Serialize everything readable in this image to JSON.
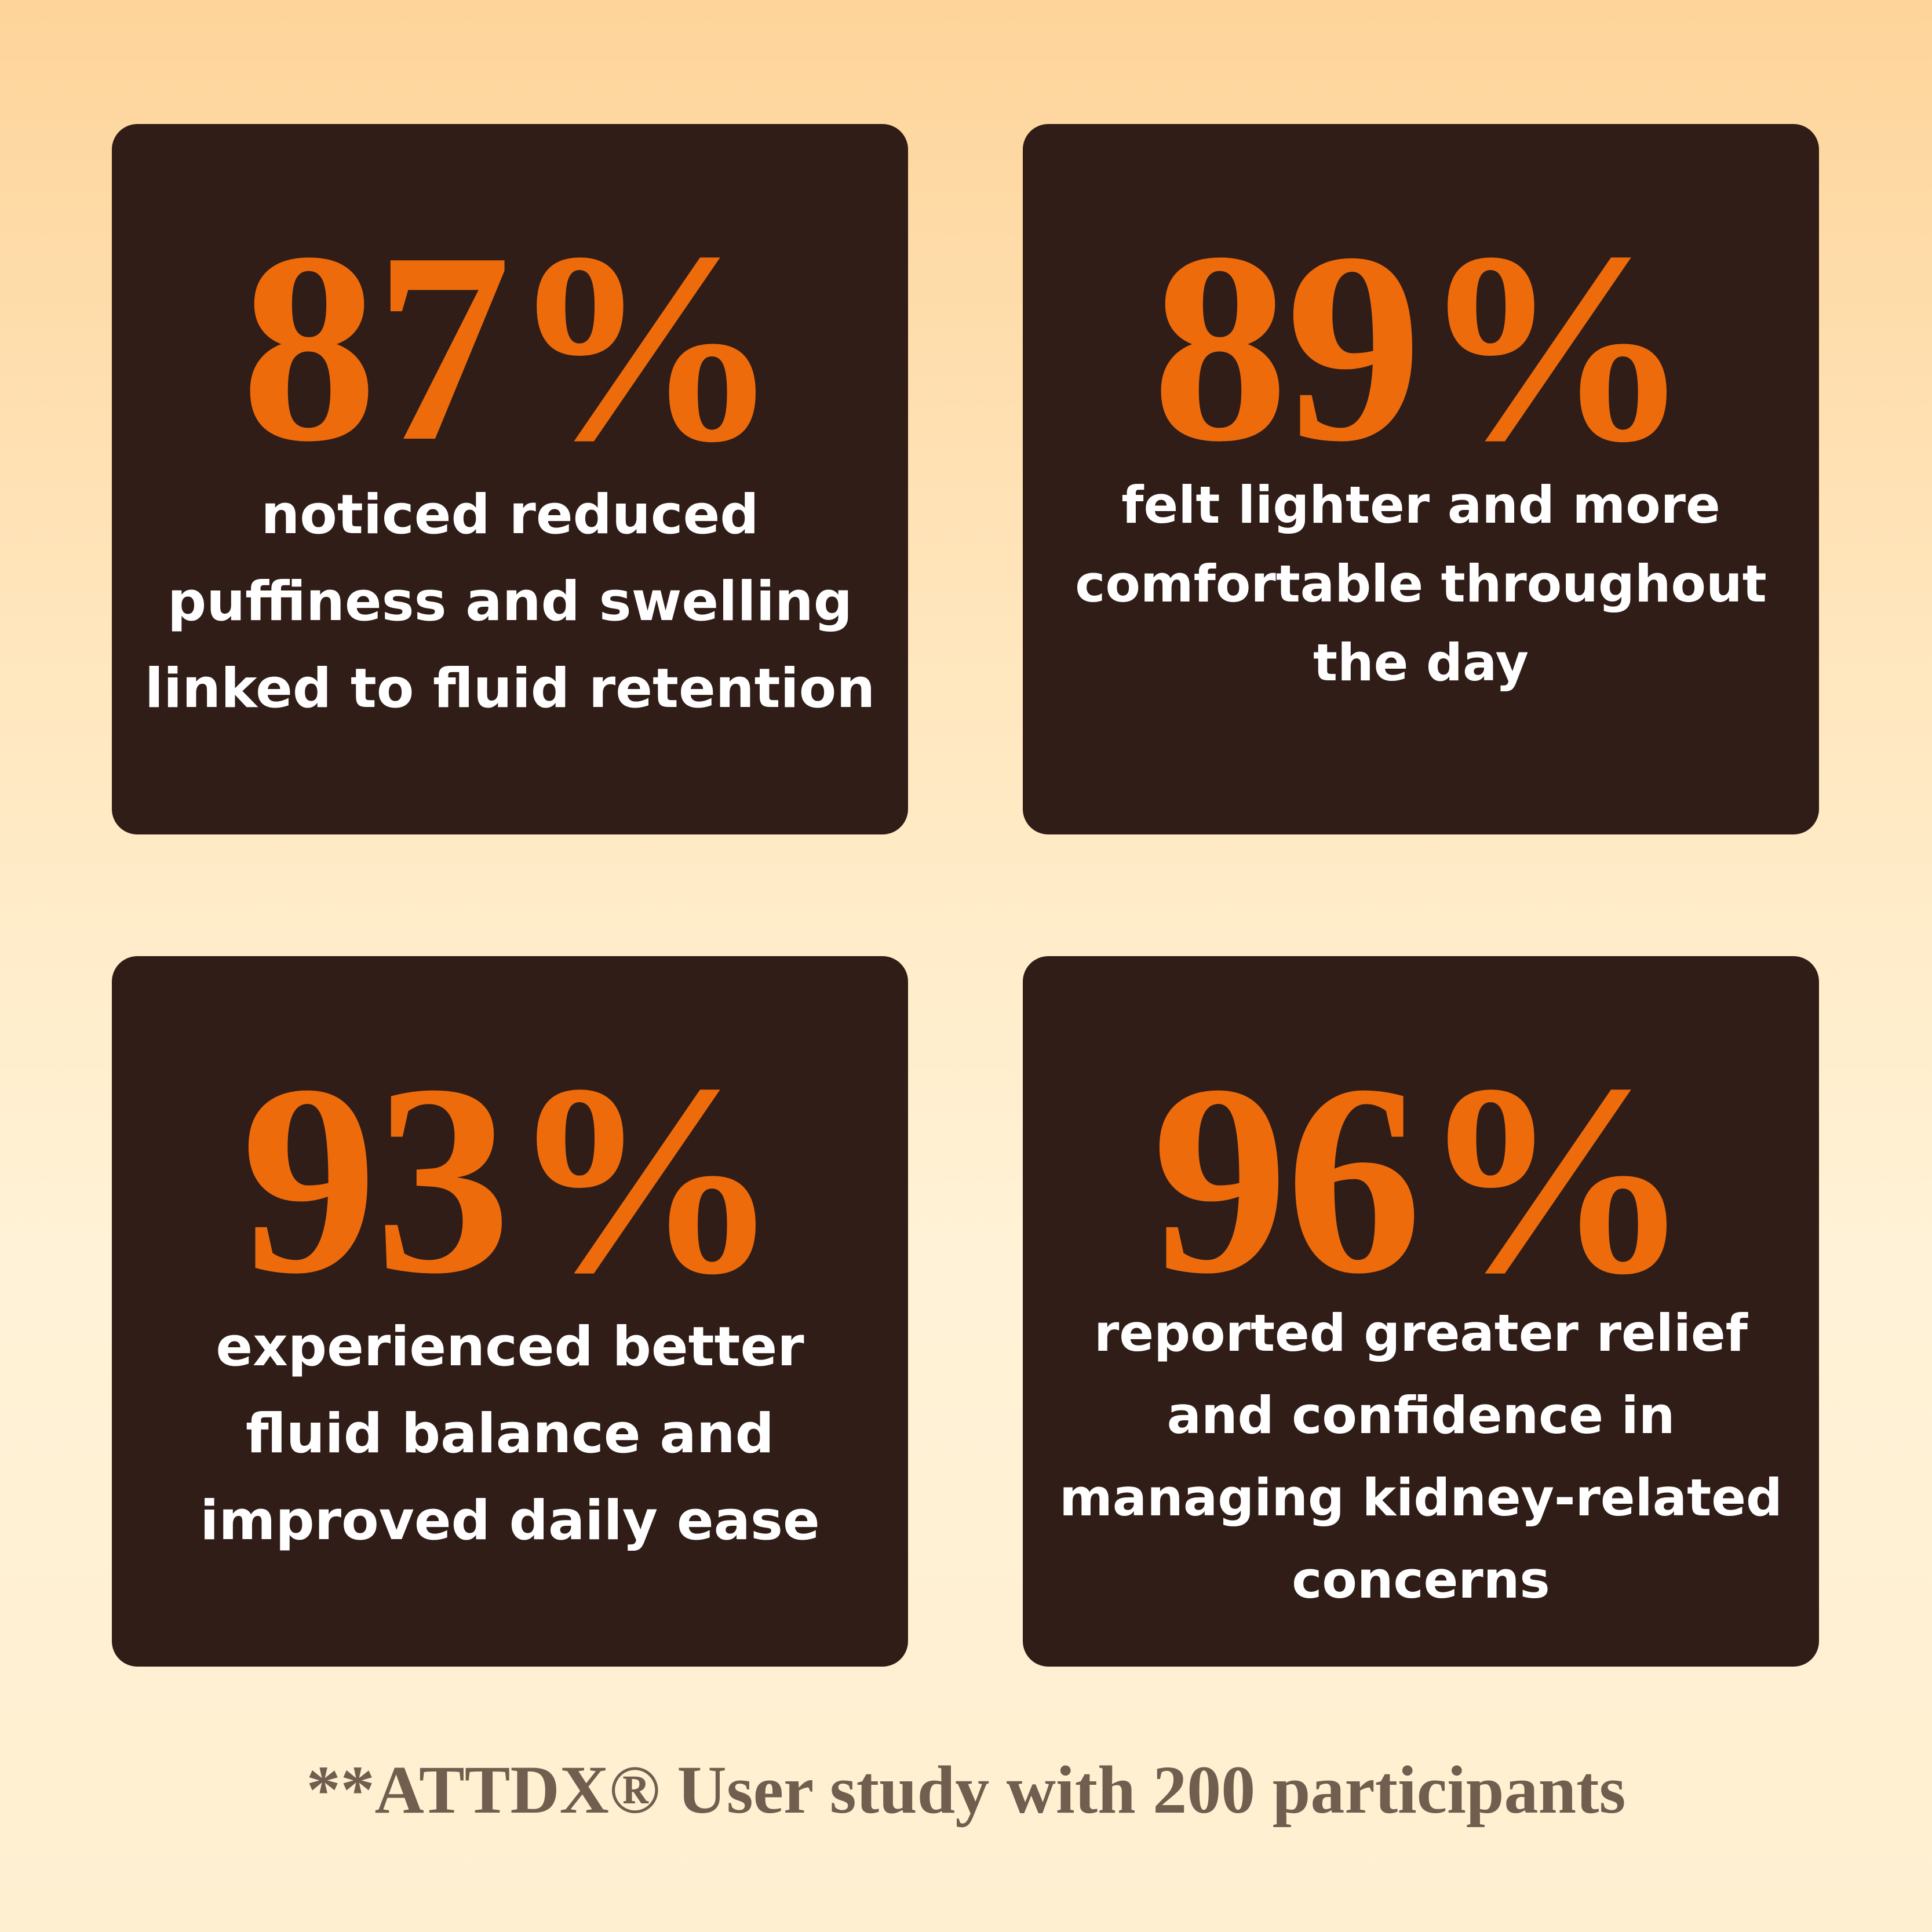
{
  "colors": {
    "background_top": "#fed49a",
    "background_bottom": "#ffefd1",
    "card_background": "#301d17",
    "stat_value": "#ee6b0c",
    "stat_text": "#ffffff",
    "footnote_text": "#725e4f"
  },
  "stats": [
    {
      "value": "87%",
      "lines": [
        "noticed reduced",
        "puffiness and swelling",
        "linked to fluid retention"
      ]
    },
    {
      "value": "89%",
      "lines": [
        "felt lighter and more",
        "comfortable throughout",
        "the day"
      ]
    },
    {
      "value": "93%",
      "lines": [
        "experienced better",
        "fluid balance and",
        "improved daily ease"
      ]
    },
    {
      "value": "96%",
      "lines": [
        "reported greater relief",
        "and confidence in",
        "managing kidney-related",
        "concerns"
      ]
    }
  ],
  "footnote": "**ATTDX® User study with 200 participants"
}
